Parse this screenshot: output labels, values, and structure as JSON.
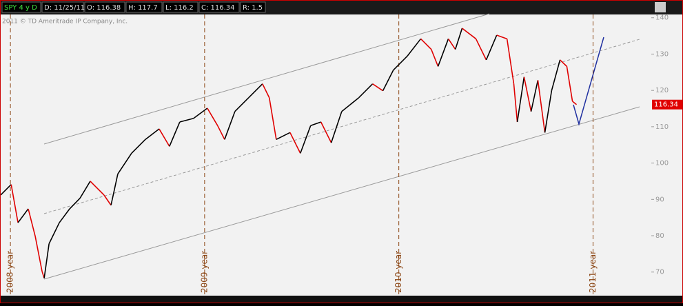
{
  "header": {
    "symbol": "SPY 4 y D",
    "fields": [
      "D: 11/25/11",
      "O: 116.38",
      "H: 117.7",
      "L: 116.2",
      "C: 116.34",
      "R: 1.5"
    ]
  },
  "chart_data": {
    "type": "line",
    "copyright": "2011 © TD Ameritrade IP Company, Inc.",
    "price_label": "116.34",
    "up_color": "#000000",
    "down_color": "#e00000",
    "x": [
      2007.95,
      2008.004,
      2008.039,
      2008.092,
      2008.128,
      2008.163,
      2008.174,
      2008.199,
      2008.252,
      2008.305,
      2008.358,
      2008.411,
      2008.482,
      2008.518,
      2008.553,
      2008.624,
      2008.695,
      2008.766,
      2008.819,
      2008.872,
      2008.943,
      2009.014,
      2009.067,
      2009.103,
      2009.156,
      2009.227,
      2009.298,
      2009.333,
      2009.369,
      2009.44,
      2009.493,
      2009.546,
      2009.599,
      2009.652,
      2009.706,
      2009.794,
      2009.865,
      2009.918,
      2009.972,
      2010.043,
      2010.113,
      2010.167,
      2010.202,
      2010.255,
      2010.291,
      2010.326,
      2010.397,
      2010.45,
      2010.504,
      2010.557,
      2010.592,
      2010.61,
      2010.645,
      2010.681,
      2010.716,
      2010.752,
      2010.787,
      2010.83,
      2010.865,
      2010.894,
      2010.915
    ],
    "values": [
      91.2,
      94.1,
      83.6,
      87.4,
      79.8,
      70.2,
      68.3,
      77.8,
      83.6,
      87.4,
      90.3,
      95.0,
      91.2,
      88.4,
      97.0,
      102.7,
      106.5,
      109.4,
      104.6,
      111.3,
      112.3,
      115.1,
      110.3,
      106.5,
      114.2,
      118.0,
      121.8,
      118.0,
      106.5,
      108.4,
      102.7,
      110.3,
      111.3,
      105.6,
      114.2,
      118.0,
      121.8,
      119.9,
      125.6,
      129.4,
      134.2,
      131.3,
      126.6,
      134.2,
      131.3,
      137.1,
      134.2,
      128.4,
      135.2,
      134.2,
      121.8,
      111.3,
      123.7,
      114.2,
      122.8,
      108.4,
      120.0,
      128.4,
      126.6,
      117.0,
      116.1
    ],
    "xlim": [
      2007.95,
      2011.3
    ],
    "xticks": [
      {
        "value": 2008,
        "label": "2008 year"
      },
      {
        "value": 2009,
        "label": "2009 year"
      },
      {
        "value": 2010,
        "label": "2010 year"
      },
      {
        "value": 2011,
        "label": "2011 year"
      }
    ],
    "ylim": [
      63.5,
      140.9
    ],
    "yticks": [
      70,
      80,
      90,
      100,
      110,
      120,
      130,
      140
    ]
  }
}
